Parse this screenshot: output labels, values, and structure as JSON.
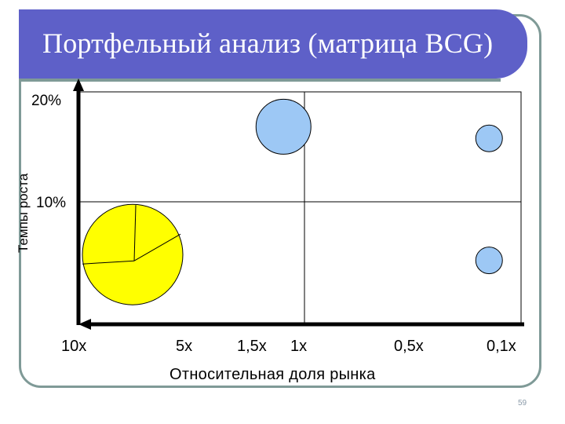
{
  "slide": {
    "title": "Портфельный анализ (матрица BCG)",
    "page_number": "59"
  },
  "colors": {
    "title_bar": "#5e60c8",
    "frame": "#7f9a97",
    "cash_cow_pie": "#ffff00",
    "bubble": "#9dc8f5"
  },
  "chart_data": {
    "type": "scatter",
    "title": "",
    "ylabel": "Темпы роста",
    "xlabel": "Относительная доля рынка",
    "y_ticks": [
      "20%",
      "10%"
    ],
    "x_ticks": [
      "10x",
      "5x",
      "1,5x",
      "1x",
      "0,5x",
      "0,1x"
    ],
    "x_scale": "log-reversed",
    "ylim": [
      0,
      20
    ],
    "grid": true,
    "points": [
      {
        "share": 1.2,
        "growth": 17,
        "size": "large",
        "shape": "circle"
      },
      {
        "share": 0.12,
        "growth": 16,
        "size": "small",
        "shape": "circle"
      },
      {
        "share": 0.12,
        "growth": 5.5,
        "size": "small",
        "shape": "circle"
      },
      {
        "share": 6.5,
        "growth": 6,
        "size": "largest",
        "shape": "pie"
      }
    ]
  }
}
